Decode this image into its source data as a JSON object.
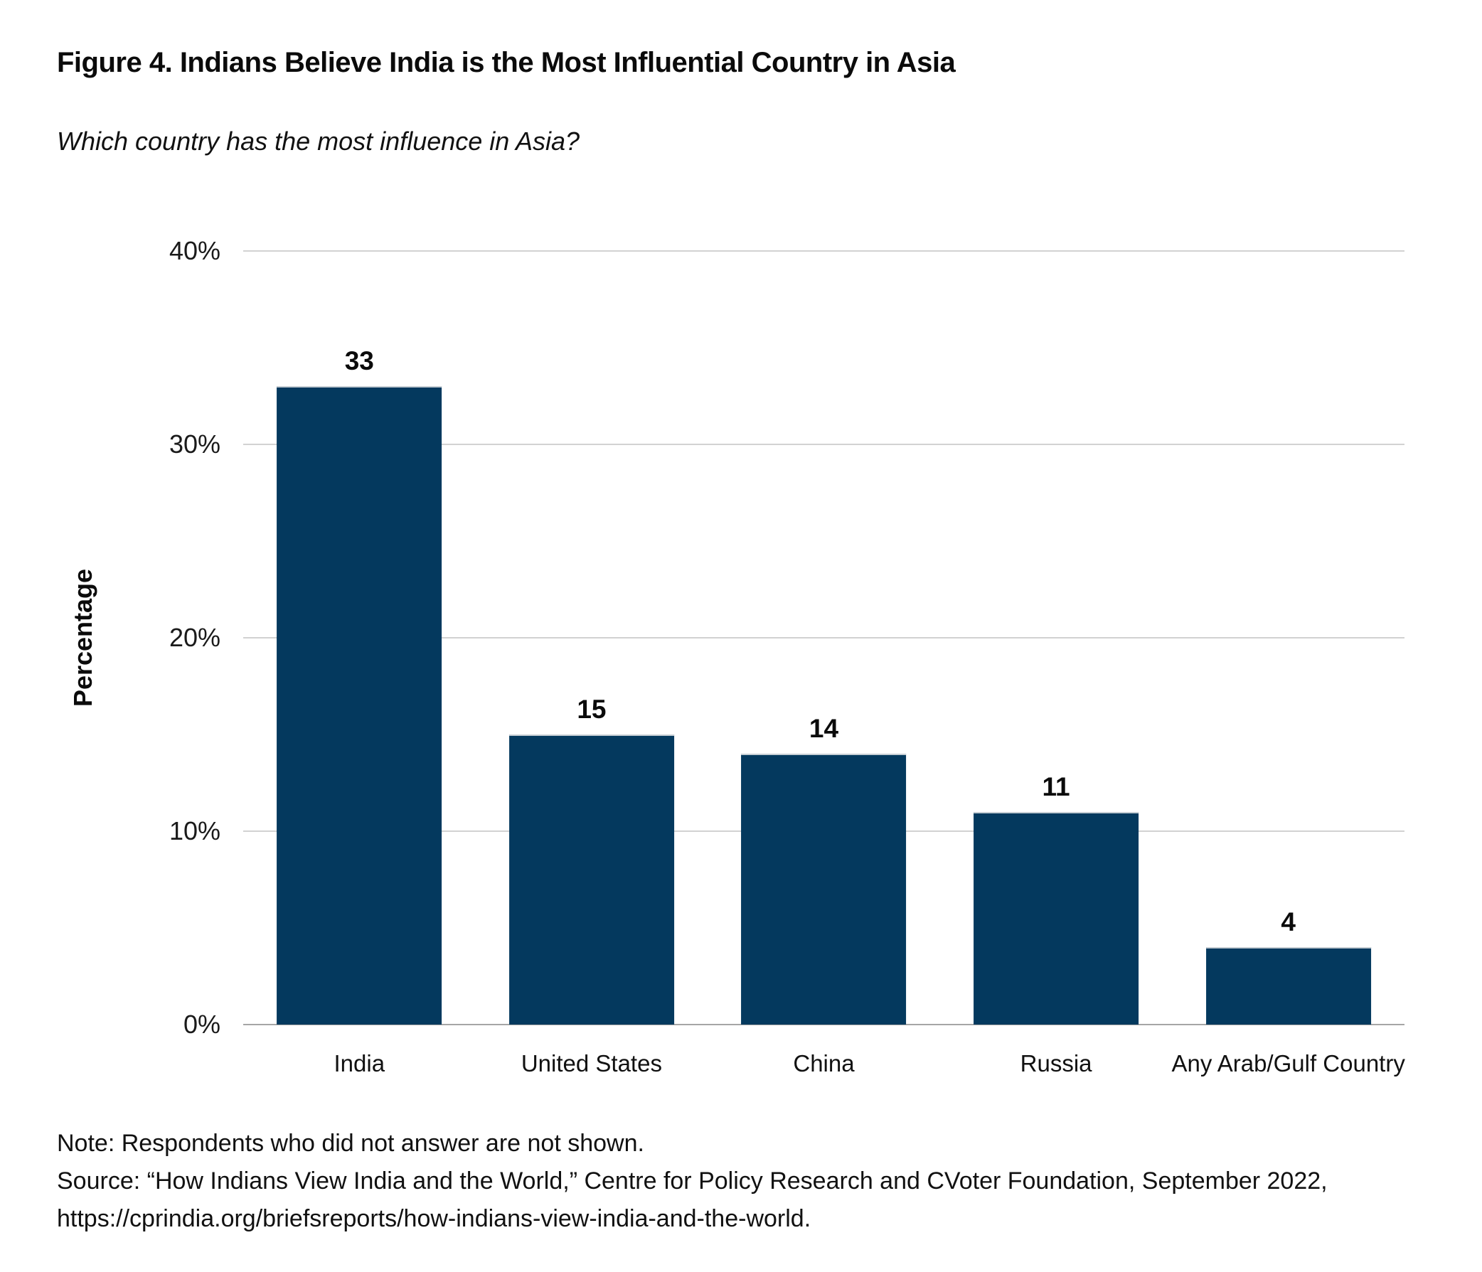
{
  "figure": {
    "title": "Figure 4. Indians Believe India is the Most Influential Country in Asia",
    "subtitle": "Which country has the most influence in Asia?"
  },
  "chart_data": {
    "type": "bar",
    "title": "Figure 4. Indians Believe India is the Most Influential Country in Asia",
    "subtitle": "Which country has the most influence in Asia?",
    "categories": [
      "India",
      "United States",
      "China",
      "Russia",
      "Any Arab/Gulf Country"
    ],
    "values": [
      33,
      15,
      14,
      11,
      4
    ],
    "value_labels": [
      "33",
      "15",
      "14",
      "11",
      "4"
    ],
    "xlabel": "",
    "ylabel": "Percentage",
    "ylim": [
      0,
      40
    ],
    "yticks": [
      0,
      10,
      20,
      30,
      40
    ],
    "ytick_labels": [
      "0%",
      "10%",
      "20%",
      "30%",
      "40%"
    ],
    "grid": true,
    "legend": "none",
    "bar_color": "#04395E"
  },
  "notes": {
    "note_line": "Note: Respondents who did not answer are not shown.",
    "source_line": "Source: “How Indians View India and the World,” Centre for Policy Research and CVoter Foundation, September 2022,",
    "url_line": "https://cprindia.org/briefsreports/how-indians-view-india-and-the-world."
  },
  "colors": {
    "bar": "#04395E",
    "gridline": "#d2d2d2",
    "baseline": "#a6a6a6",
    "text": "#0b0b0b"
  }
}
